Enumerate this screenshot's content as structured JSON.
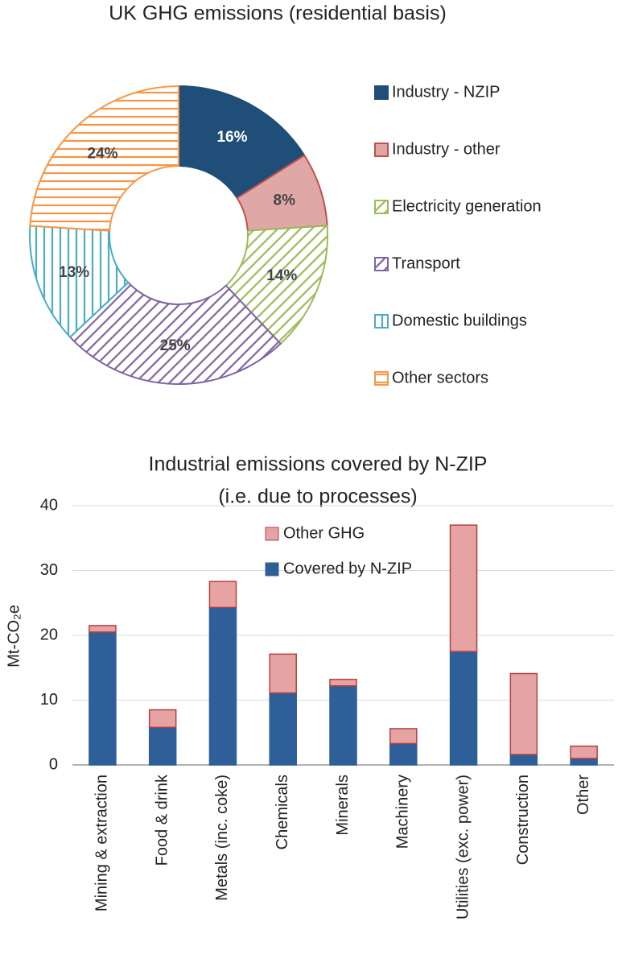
{
  "chart_data": [
    {
      "type": "donut",
      "title": "UK GHG emissions (residential basis)",
      "categories": [
        "Industry - NZIP",
        "Industry - other",
        "Electricity generation",
        "Transport",
        "Domestic buildings",
        "Other sectors"
      ],
      "values": [
        16,
        8,
        14,
        25,
        13,
        24
      ],
      "value_labels": [
        "16%",
        "8%",
        "14%",
        "25%",
        "13%",
        "24%"
      ],
      "colors": [
        "#1f4e79",
        "#c0504d",
        "#9bbb59",
        "#8064a2",
        "#4bacc6",
        "#f79646"
      ],
      "patterns": [
        "solid",
        "tint",
        "diagonal-up",
        "diagonal-up",
        "vertical",
        "horizontal"
      ]
    },
    {
      "type": "stacked-bar",
      "title": [
        "Industrial emissions covered by N-ZIP",
        "(i.e. due to processes)"
      ],
      "y_label": "Mt-CO₂e",
      "categories": [
        "Mining & extraction",
        "Food & drink",
        "Metals (inc. coke)",
        "Chemicals",
        "Minerals",
        "Machinery",
        "Utilities (exc. power)",
        "Construction",
        "Other"
      ],
      "series": [
        {
          "name": "Covered by N-ZIP",
          "color": "#2f5f98",
          "edgecolor": "#2f5f98",
          "values": [
            20.5,
            5.8,
            24.3,
            11.1,
            12.2,
            3.3,
            17.5,
            1.6,
            1.0
          ]
        },
        {
          "name": "Other GHG",
          "color": "#e6a3a4",
          "edgecolor": "#b5413f",
          "values": [
            1.0,
            2.7,
            4.0,
            6.0,
            1.0,
            2.3,
            19.5,
            12.5,
            1.9
          ]
        }
      ],
      "ylim": [
        0,
        40
      ],
      "yticks": [
        0,
        10,
        20,
        30,
        40
      ],
      "grid": true
    }
  ]
}
